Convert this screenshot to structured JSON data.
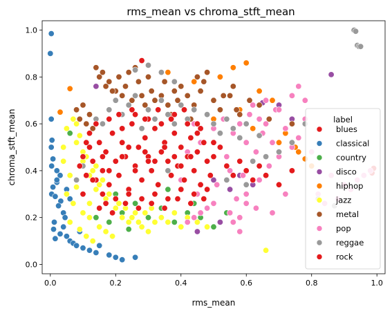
{
  "chart_data": {
    "type": "scatter",
    "title": "rms_mean vs chroma_stft_mean",
    "xlabel": "rms_mean",
    "ylabel": "chroma_stft_mean",
    "xlim": [
      -0.025,
      1.025
    ],
    "ylim": [
      -0.04,
      1.04
    ],
    "xticks": [
      "0.0",
      "0.2",
      "0.4",
      "0.6",
      "0.8",
      "1.0"
    ],
    "yticks": [
      "0.0",
      "0.2",
      "0.4",
      "0.6",
      "0.8",
      "1.0"
    ],
    "grid": false,
    "legend": {
      "title": "label",
      "placement": "lower right"
    },
    "series": [
      {
        "name": "blues",
        "color": "#e41a1c",
        "x": [
          0.985,
          0.99,
          0.28
        ],
        "y": [
          0.39,
          0.41,
          0.87
        ]
      },
      {
        "name": "classical",
        "color": "#377eb8",
        "x": [
          0.003,
          0.0,
          0.003,
          0.005,
          0.003,
          0.008,
          0.004,
          0.02,
          0.03,
          0.02,
          0.008,
          0.004,
          0.015,
          0.032,
          0.025,
          0.04,
          0.045,
          0.012,
          0.01,
          0.05,
          0.06,
          0.07,
          0.08,
          0.1,
          0.12,
          0.14,
          0.18,
          0.2,
          0.22,
          0.26,
          0.04,
          0.03,
          0.015,
          0.05,
          0.02,
          0.06,
          0.09,
          0.11,
          0.13,
          0.15
        ],
        "y": [
          0.985,
          0.9,
          0.62,
          0.53,
          0.5,
          0.45,
          0.42,
          0.4,
          0.38,
          0.35,
          0.33,
          0.3,
          0.29,
          0.27,
          0.25,
          0.22,
          0.2,
          0.18,
          0.15,
          0.12,
          0.1,
          0.09,
          0.08,
          0.07,
          0.06,
          0.05,
          0.04,
          0.03,
          0.02,
          0.03,
          0.16,
          0.13,
          0.11,
          0.32,
          0.36,
          0.28,
          0.14,
          0.12,
          0.1,
          0.08
        ]
      },
      {
        "name": "country",
        "color": "#4daf4a",
        "x": [
          0.06,
          0.14,
          0.18,
          0.22,
          0.26,
          0.3,
          0.34,
          0.38,
          0.42,
          0.46,
          0.5,
          0.54,
          0.24,
          0.32,
          0.44,
          0.2,
          0.28,
          0.36
        ],
        "y": [
          0.56,
          0.2,
          0.18,
          0.22,
          0.26,
          0.2,
          0.24,
          0.18,
          0.22,
          0.2,
          0.16,
          0.22,
          0.15,
          0.18,
          0.26,
          0.3,
          0.28,
          0.32
        ]
      },
      {
        "name": "disco",
        "color": "#984ea3",
        "x": [
          0.86,
          0.65,
          0.14,
          0.5,
          0.55,
          0.6,
          0.7,
          0.74,
          0.45,
          0.52,
          0.58,
          0.62
        ],
        "y": [
          0.81,
          0.69,
          0.76,
          0.36,
          0.32,
          0.3,
          0.68,
          0.62,
          0.14,
          0.18,
          0.38,
          0.34
        ]
      },
      {
        "name": "hiphop",
        "color": "#ff7f00",
        "x": [
          0.03,
          0.06,
          0.36,
          0.44,
          0.52,
          0.56,
          0.6,
          0.64,
          0.68,
          0.72,
          0.75,
          0.76,
          0.78,
          0.8,
          0.7,
          0.5,
          0.58,
          0.62,
          0.74
        ],
        "y": [
          0.65,
          0.75,
          0.82,
          0.78,
          0.8,
          0.84,
          0.86,
          0.74,
          0.7,
          0.56,
          0.5,
          0.48,
          0.45,
          0.42,
          0.52,
          0.62,
          0.66,
          0.58,
          0.6
        ]
      },
      {
        "name": "jazz",
        "color": "#ffff33",
        "x": [
          0.04,
          0.06,
          0.08,
          0.05,
          0.07,
          0.1,
          0.12,
          0.06,
          0.09,
          0.11,
          0.13,
          0.08,
          0.1,
          0.14,
          0.16,
          0.18,
          0.12,
          0.2,
          0.22,
          0.15,
          0.17,
          0.19,
          0.24,
          0.26,
          0.28,
          0.3,
          0.32,
          0.05,
          0.07,
          0.04,
          0.09,
          0.11,
          0.13,
          0.15,
          0.17,
          0.21,
          0.23,
          0.25,
          0.27,
          0.29,
          0.31,
          0.34,
          0.36,
          0.38,
          0.4,
          0.42,
          0.45,
          0.48,
          0.66,
          0.08,
          0.1,
          0.12,
          0.14
        ],
        "y": [
          0.44,
          0.38,
          0.33,
          0.3,
          0.26,
          0.22,
          0.2,
          0.18,
          0.15,
          0.12,
          0.1,
          0.52,
          0.48,
          0.42,
          0.36,
          0.3,
          0.26,
          0.24,
          0.2,
          0.16,
          0.14,
          0.12,
          0.18,
          0.22,
          0.16,
          0.14,
          0.18,
          0.58,
          0.62,
          0.5,
          0.55,
          0.46,
          0.4,
          0.34,
          0.28,
          0.26,
          0.24,
          0.2,
          0.18,
          0.22,
          0.24,
          0.2,
          0.18,
          0.22,
          0.16,
          0.2,
          0.18,
          0.16,
          0.06,
          0.6,
          0.44,
          0.38,
          0.32
        ]
      },
      {
        "name": "metal",
        "color": "#a65628",
        "x": [
          0.14,
          0.15,
          0.16,
          0.17,
          0.18,
          0.2,
          0.21,
          0.22,
          0.23,
          0.24,
          0.25,
          0.26,
          0.27,
          0.28,
          0.29,
          0.3,
          0.31,
          0.32,
          0.33,
          0.34,
          0.35,
          0.36,
          0.37,
          0.38,
          0.39,
          0.4,
          0.41,
          0.42,
          0.44,
          0.46,
          0.48,
          0.5,
          0.52,
          0.55,
          0.58,
          0.61,
          0.64,
          0.67,
          0.7,
          0.74,
          0.08,
          0.09,
          0.1,
          0.11,
          0.12,
          0.13,
          0.19,
          0.45,
          0.47,
          0.53,
          0.56,
          0.43,
          0.57
        ],
        "y": [
          0.84,
          0.8,
          0.82,
          0.76,
          0.78,
          0.74,
          0.8,
          0.72,
          0.76,
          0.82,
          0.7,
          0.84,
          0.78,
          0.72,
          0.68,
          0.8,
          0.74,
          0.7,
          0.66,
          0.72,
          0.78,
          0.68,
          0.64,
          0.74,
          0.7,
          0.76,
          0.66,
          0.72,
          0.68,
          0.74,
          0.82,
          0.7,
          0.66,
          0.72,
          0.64,
          0.7,
          0.68,
          0.62,
          0.66,
          0.6,
          0.66,
          0.62,
          0.68,
          0.6,
          0.64,
          0.58,
          0.74,
          0.8,
          0.78,
          0.72,
          0.76,
          0.62,
          0.66
        ]
      },
      {
        "name": "pop",
        "color": "#f781bf",
        "x": [
          0.35,
          0.36,
          0.38,
          0.4,
          0.42,
          0.44,
          0.45,
          0.46,
          0.48,
          0.5,
          0.51,
          0.52,
          0.53,
          0.54,
          0.55,
          0.56,
          0.57,
          0.58,
          0.59,
          0.6,
          0.61,
          0.62,
          0.63,
          0.64,
          0.65,
          0.66,
          0.67,
          0.68,
          0.69,
          0.7,
          0.72,
          0.74,
          0.76,
          0.78,
          0.8,
          0.82,
          0.84,
          0.86,
          0.88,
          0.9,
          0.92,
          0.94,
          0.96,
          0.98,
          0.76,
          0.78,
          0.74,
          0.7,
          0.66,
          0.62,
          0.6,
          0.5,
          0.48,
          0.46,
          0.44,
          0.42,
          0.55,
          0.58,
          0.63,
          0.68,
          0.72,
          0.58,
          0.56,
          0.6,
          0.64
        ],
        "y": [
          0.5,
          0.4,
          0.56,
          0.36,
          0.48,
          0.6,
          0.3,
          0.52,
          0.44,
          0.58,
          0.34,
          0.5,
          0.62,
          0.46,
          0.4,
          0.56,
          0.28,
          0.6,
          0.38,
          0.52,
          0.64,
          0.44,
          0.48,
          0.36,
          0.56,
          0.6,
          0.42,
          0.52,
          0.66,
          0.46,
          0.58,
          0.5,
          0.54,
          0.62,
          0.48,
          0.3,
          0.26,
          0.38,
          0.28,
          0.34,
          0.32,
          0.36,
          0.38,
          0.4,
          0.76,
          0.7,
          0.72,
          0.66,
          0.7,
          0.68,
          0.3,
          0.26,
          0.24,
          0.22,
          0.2,
          0.18,
          0.22,
          0.2,
          0.24,
          0.22,
          0.3,
          0.14,
          0.18,
          0.26,
          0.62
        ]
      },
      {
        "name": "reggae",
        "color": "#999999",
        "x": [
          0.93,
          0.935,
          0.94,
          0.945,
          0.95,
          0.12,
          0.14,
          0.16,
          0.18,
          0.2,
          0.22,
          0.24,
          0.26,
          0.28,
          0.3,
          0.32,
          0.34,
          0.36,
          0.38,
          0.4,
          0.42,
          0.44,
          0.46,
          0.48,
          0.5,
          0.52,
          0.54,
          0.56,
          0.58,
          0.6,
          0.62,
          0.64,
          0.66,
          0.7,
          0.74,
          0.78,
          0.82,
          0.87,
          0.3,
          0.26,
          0.34,
          0.38,
          0.64,
          0.1,
          0.08,
          0.36,
          0.54,
          0.6
        ],
        "y": [
          1.0,
          0.995,
          0.935,
          0.93,
          0.93,
          0.56,
          0.62,
          0.6,
          0.66,
          0.7,
          0.64,
          0.68,
          0.72,
          0.58,
          0.66,
          0.62,
          0.7,
          0.64,
          0.6,
          0.68,
          0.62,
          0.66,
          0.58,
          0.64,
          0.6,
          0.56,
          0.62,
          0.58,
          0.54,
          0.6,
          0.44,
          0.42,
          0.46,
          0.48,
          0.52,
          0.6,
          0.28,
          0.25,
          0.85,
          0.83,
          0.82,
          0.78,
          0.55,
          0.42,
          0.36,
          0.4,
          0.36,
          0.34
        ]
      },
      {
        "name": "rock",
        "color": "#e41a1c",
        "x": [
          0.09,
          0.1,
          0.11,
          0.12,
          0.13,
          0.14,
          0.15,
          0.16,
          0.17,
          0.18,
          0.19,
          0.2,
          0.21,
          0.22,
          0.23,
          0.24,
          0.25,
          0.26,
          0.27,
          0.28,
          0.29,
          0.3,
          0.31,
          0.32,
          0.33,
          0.34,
          0.35,
          0.36,
          0.37,
          0.38,
          0.39,
          0.4,
          0.41,
          0.42,
          0.43,
          0.44,
          0.45,
          0.46,
          0.47,
          0.48,
          0.49,
          0.5,
          0.52,
          0.54,
          0.56,
          0.58,
          0.6,
          0.62,
          0.64,
          0.66,
          0.7,
          0.74,
          0.1,
          0.12,
          0.14,
          0.16,
          0.18,
          0.2,
          0.22,
          0.24,
          0.26,
          0.28,
          0.3,
          0.32,
          0.34,
          0.36,
          0.38,
          0.4,
          0.42,
          0.44,
          0.46,
          0.48,
          0.15,
          0.17,
          0.19,
          0.21,
          0.23,
          0.25,
          0.27,
          0.29,
          0.31,
          0.33,
          0.35,
          0.37,
          0.39,
          0.41,
          0.43,
          0.45,
          0.47,
          0.13,
          0.11,
          0.35,
          0.32,
          0.29,
          0.26,
          0.4,
          0.43,
          0.22,
          0.18,
          0.5,
          0.45,
          0.38,
          0.3,
          0.24,
          0.16
        ],
        "y": [
          0.42,
          0.46,
          0.38,
          0.5,
          0.44,
          0.36,
          0.52,
          0.4,
          0.48,
          0.34,
          0.56,
          0.44,
          0.38,
          0.52,
          0.46,
          0.32,
          0.6,
          0.42,
          0.5,
          0.36,
          0.54,
          0.46,
          0.4,
          0.58,
          0.34,
          0.48,
          0.52,
          0.44,
          0.38,
          0.56,
          0.42,
          0.5,
          0.36,
          0.46,
          0.54,
          0.4,
          0.48,
          0.34,
          0.52,
          0.44,
          0.38,
          0.46,
          0.5,
          0.42,
          0.38,
          0.44,
          0.4,
          0.36,
          0.42,
          0.38,
          0.34,
          0.4,
          0.3,
          0.56,
          0.6,
          0.3,
          0.62,
          0.28,
          0.58,
          0.3,
          0.64,
          0.28,
          0.62,
          0.3,
          0.6,
          0.28,
          0.64,
          0.32,
          0.6,
          0.3,
          0.58,
          0.32,
          0.24,
          0.26,
          0.22,
          0.64,
          0.26,
          0.66,
          0.24,
          0.62,
          0.26,
          0.66,
          0.24,
          0.62,
          0.28,
          0.66,
          0.26,
          0.6,
          0.28,
          0.36,
          0.52,
          0.5,
          0.44,
          0.48,
          0.4,
          0.42,
          0.46,
          0.46,
          0.4,
          0.52,
          0.56,
          0.46,
          0.44,
          0.5,
          0.46
        ]
      }
    ]
  }
}
